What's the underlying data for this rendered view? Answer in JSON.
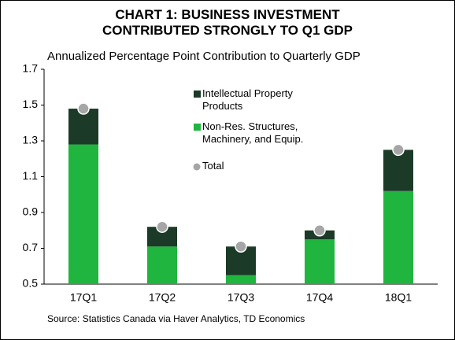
{
  "chart_data": {
    "type": "bar",
    "title": "CHART 1: BUSINESS INVESTMENT CONTRIBUTED STRONGLY TO Q1 GDP",
    "subtitle": "Annualized Percentage Point Contribution to Quarterly GDP",
    "source": "Source: Statistics Canada via Haver Analytics, TD Economics",
    "categories": [
      "17Q1",
      "17Q2",
      "17Q3",
      "17Q4",
      "18Q1"
    ],
    "series": [
      {
        "name": "Intellectual Property Products",
        "type": "bar",
        "color": "#1b3a27",
        "values": [
          0.2,
          0.11,
          0.16,
          0.05,
          0.23
        ]
      },
      {
        "name": "Non-Res. Structures, Machinery, and Equip.",
        "type": "bar",
        "color": "#1fb53e",
        "values": [
          1.28,
          0.71,
          0.55,
          0.75,
          1.02
        ]
      },
      {
        "name": "Total",
        "type": "scatter",
        "color": "#a6a6a6",
        "values": [
          1.48,
          0.82,
          0.71,
          0.8,
          1.25
        ]
      }
    ],
    "ylim": [
      0.5,
      1.7
    ],
    "yticks": [
      0.5,
      0.7,
      0.9,
      1.1,
      1.3,
      1.5,
      1.7
    ],
    "grid": false
  }
}
